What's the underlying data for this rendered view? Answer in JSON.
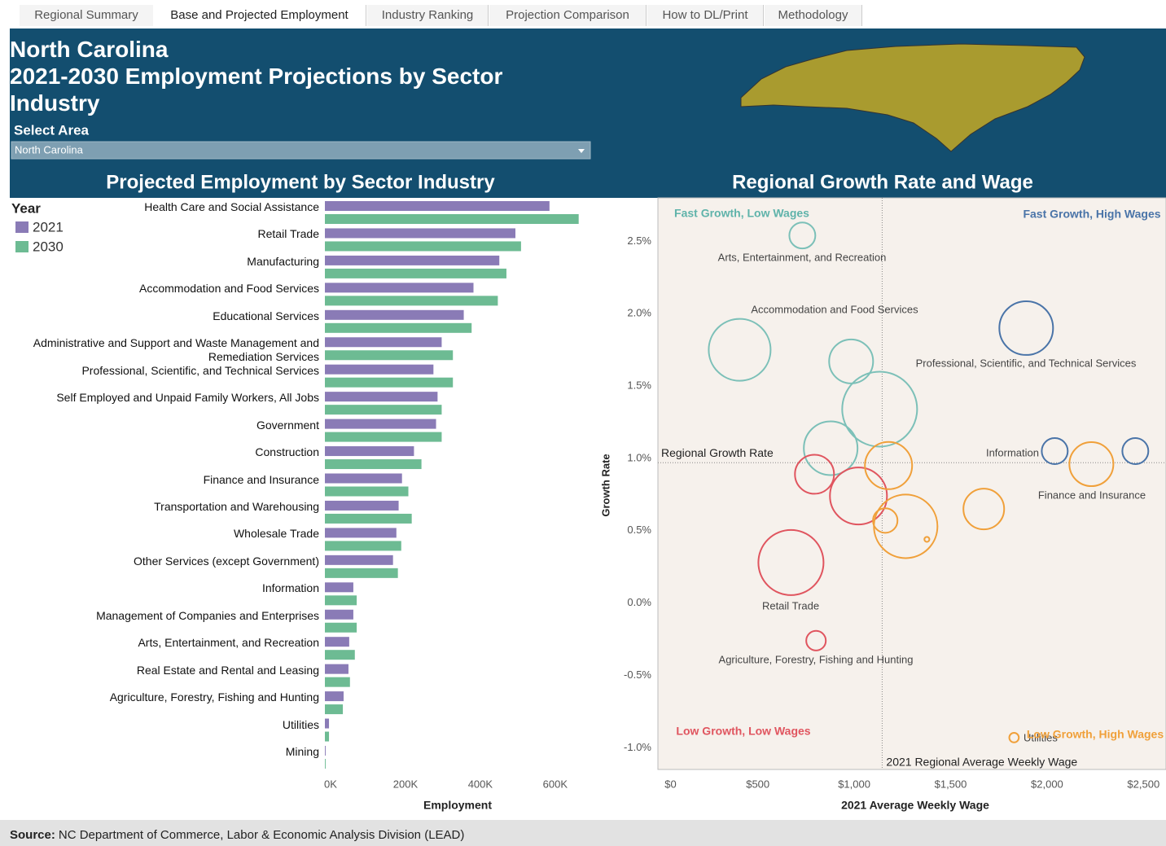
{
  "tabs": [
    "Regional Summary",
    "Base and Projected Employment",
    "Industry Ranking",
    "Projection Comparison",
    "How to DL/Print",
    "Methodology"
  ],
  "header": {
    "title": "North Carolina",
    "subtitle": "2021-2030 Employment Projections by Sector Industry"
  },
  "filter": {
    "label": "Select Area",
    "value": "North Carolina"
  },
  "chart_data": [
    {
      "type": "bar",
      "orientation": "horizontal",
      "title": "Projected Employment by Sector Industry",
      "legend_title": "Year",
      "categories": [
        "Health Care and Social Assistance",
        "Retail Trade",
        "Manufacturing",
        "Accommodation and Food Services",
        "Educational Services",
        "Administrative and Support and Waste Management and Remediation Services",
        "Professional, Scientific, and Technical Services",
        "Self Employed and Unpaid Family Workers, All Jobs",
        "Government",
        "Construction",
        "Finance and Insurance",
        "Transportation and Warehousing",
        "Wholesale Trade",
        "Other Services (except Government)",
        "Information",
        "Management of Companies and Enterprises",
        "Arts, Entertainment, and Recreation",
        "Real Estate and Rental and Leasing",
        "Agriculture, Forestry, Fishing and Hunting",
        "Utilities",
        "Mining"
      ],
      "series": [
        {
          "name": "2021",
          "color": "#8a7bb6",
          "values": [
            600000,
            509000,
            466000,
            397000,
            371000,
            312000,
            290000,
            301000,
            297000,
            238000,
            206000,
            197000,
            191000,
            182000,
            76000,
            76000,
            65000,
            63000,
            50000,
            11000,
            2000
          ]
        },
        {
          "name": "2030",
          "color": "#6dbb93",
          "values": [
            678000,
            524000,
            485000,
            462000,
            392000,
            342000,
            342000,
            312000,
            312000,
            258000,
            223000,
            232000,
            204000,
            195000,
            85000,
            85000,
            80000,
            67000,
            48000,
            11000,
            2000
          ]
        }
      ],
      "xlim": [
        0,
        720000
      ],
      "xticks": [
        {
          "value": 0,
          "label": "0K"
        },
        {
          "value": 200000,
          "label": "200K"
        },
        {
          "value": 400000,
          "label": "400K"
        },
        {
          "value": 600000,
          "label": "600K"
        }
      ],
      "xlabel": "Employment",
      "grid": false
    },
    {
      "type": "scatter",
      "title": "Regional Growth Rate and Wage",
      "xlabel": "2021 Average Weekly Wage",
      "ylabel": "Growth Rate",
      "xlim": [
        -35,
        2600
      ],
      "ylim": [
        -1.15,
        2.8
      ],
      "xticks": [
        {
          "value": 0,
          "label": "$0"
        },
        {
          "value": 500,
          "label": "$500"
        },
        {
          "value": 1000,
          "label": "$1,000"
        },
        {
          "value": 1500,
          "label": "$1,500"
        },
        {
          "value": 2000,
          "label": "$2,000"
        },
        {
          "value": 2500,
          "label": "$2,500"
        }
      ],
      "yticks": [
        {
          "value": 2.5,
          "label": "2.5%"
        },
        {
          "value": 2.0,
          "label": "2.0%"
        },
        {
          "value": 1.5,
          "label": "1.5%"
        },
        {
          "value": 1.0,
          "label": "1.0%"
        },
        {
          "value": 0.5,
          "label": "0.5%"
        },
        {
          "value": 0.0,
          "label": "0.0%"
        },
        {
          "value": -0.5,
          "label": "-0.5%"
        },
        {
          "value": -1.0,
          "label": "-1.0%"
        }
      ],
      "x": [
        714,
        389,
        967,
        1115,
        861,
        777,
        1005,
        1161,
        1144,
        1250,
        1360,
        1655,
        2213,
        2023,
        2441,
        1875,
        655,
        785,
        1812
      ],
      "y": [
        2.54,
        1.75,
        1.67,
        1.34,
        1.07,
        0.89,
        0.74,
        0.95,
        0.57,
        0.53,
        0.44,
        0.65,
        0.96,
        1.05,
        1.05,
        1.9,
        0.28,
        -0.26,
        -0.93
      ],
      "sizes": [
        81000,
        459000,
        232000,
        673000,
        346000,
        183000,
        390000,
        267000,
        72000,
        484000,
        3000,
        199000,
        232000,
        81000,
        81000,
        346000,
        509000,
        46000,
        11000
      ],
      "colors": [
        "#7cc0b8",
        "#7cc0b8",
        "#7cc0b8",
        "#7cc0b8",
        "#7cc0b8",
        "#e0555f",
        "#e0555f",
        "#f0a03a",
        "#f0a03a",
        "#f0a03a",
        "#f0a03a",
        "#f0a03a",
        "#f0a03a",
        "#4a74a8",
        "#4a74a8",
        "#4a74a8",
        "#e0555f",
        "#e0555f",
        "#f0a03a"
      ],
      "labels": [
        "Arts, Entertainment, and Recreation",
        "Accommodation and Food Services",
        null,
        null,
        null,
        null,
        null,
        null,
        null,
        null,
        null,
        null,
        "Finance and Insurance",
        "Information",
        null,
        "Professional, Scientific, and Technical Services",
        "Retail Trade",
        "Agriculture, Forestry, Fishing and Hunting",
        "Utilities"
      ],
      "reference_lines": [
        {
          "axis": "y",
          "value": 0.97,
          "label": "Regional Growth Rate"
        },
        {
          "axis": "x",
          "value": 1128,
          "label": "2021 Regional Average Weekly Wage"
        }
      ],
      "quadrant_labels": [
        {
          "text": "Fast Growth, Low Wages",
          "color": "#5fb3aa"
        },
        {
          "text": "Fast Growth, High Wages",
          "color": "#4a74a8"
        },
        {
          "text": "Low Growth, Low Wages",
          "color": "#e0555f"
        },
        {
          "text": "Low Growth, High Wages",
          "color": "#f0a03a"
        }
      ]
    }
  ],
  "footer": {
    "source_label": "Source:",
    "source": "NC Department of Commerce, Labor & Economic Analysis Division (LEAD)"
  }
}
